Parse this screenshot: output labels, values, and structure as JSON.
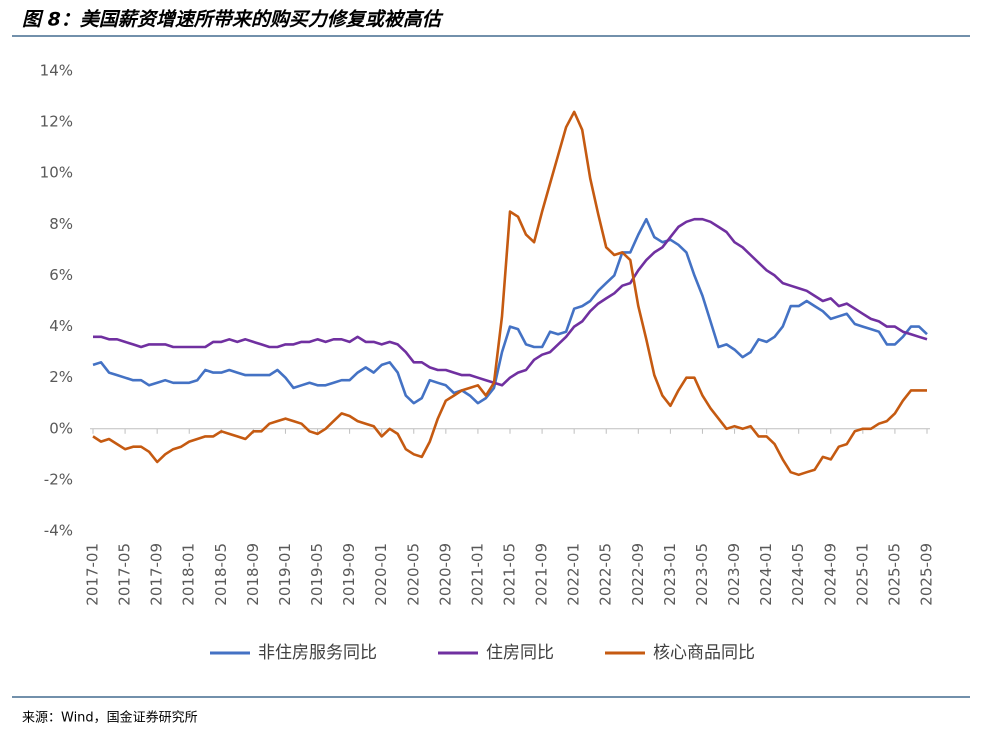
{
  "chart_data": {
    "type": "line",
    "title": "图 8：美国薪资增速所带来的购买力修复或被高估",
    "source": "来源：Wind，国金证券研究所",
    "categories": [
      "2017-01",
      null,
      null,
      null,
      "2017-05",
      null,
      null,
      null,
      "2017-09",
      null,
      null,
      null,
      "2018-01",
      null,
      null,
      null,
      "2018-05",
      null,
      null,
      null,
      "2018-09",
      null,
      null,
      null,
      "2019-01",
      null,
      null,
      null,
      "2019-05",
      null,
      null,
      null,
      "2019-09",
      null,
      null,
      null,
      "2020-01",
      null,
      null,
      null,
      "2020-05",
      null,
      null,
      null,
      "2020-09",
      null,
      null,
      null,
      "2021-01",
      null,
      null,
      null,
      "2021-05",
      null,
      null,
      null,
      "2021-09",
      null,
      null,
      null,
      "2022-01",
      null,
      null,
      null,
      "2022-05",
      null,
      null,
      null,
      "2022-09",
      null,
      null,
      null,
      "2023-01",
      null,
      null,
      null,
      "2023-05",
      null,
      null,
      null,
      "2023-09",
      null,
      null,
      null,
      "2024-01",
      null,
      null,
      null,
      "2024-05",
      null,
      null,
      null,
      "2024-09",
      null,
      null,
      null,
      "2025-01",
      null,
      null,
      null,
      "2025-05",
      null,
      null,
      null,
      "2025-09"
    ],
    "series": [
      {
        "name": "非住房服务同比",
        "color": "#4472c4",
        "values": [
          2.5,
          2.6,
          2.2,
          2.1,
          2.0,
          1.9,
          1.9,
          1.7,
          1.8,
          1.9,
          1.8,
          1.8,
          1.8,
          1.9,
          2.3,
          2.2,
          2.2,
          2.3,
          2.2,
          2.1,
          2.1,
          2.1,
          2.1,
          2.3,
          2.0,
          1.6,
          1.7,
          1.8,
          1.7,
          1.7,
          1.8,
          1.9,
          1.9,
          2.2,
          2.4,
          2.2,
          2.5,
          2.6,
          2.2,
          1.3,
          1.0,
          1.2,
          1.9,
          1.8,
          1.7,
          1.4,
          1.5,
          1.3,
          1.0,
          1.2,
          1.6,
          3.0,
          4.0,
          3.9,
          3.3,
          3.2,
          3.2,
          3.8,
          3.7,
          3.8,
          4.7,
          4.8,
          5.0,
          5.4,
          5.7,
          6.0,
          6.9,
          6.9,
          7.6,
          8.2,
          7.5,
          7.3,
          7.4,
          7.2,
          6.9,
          6.0,
          5.2,
          4.2,
          3.2,
          3.3,
          3.1,
          2.8,
          3.0,
          3.5,
          3.4,
          3.6,
          4.0,
          4.8,
          4.8,
          5.0,
          4.8,
          4.6,
          4.3,
          4.4,
          4.5,
          4.1,
          4.0,
          3.9,
          3.8,
          3.3,
          3.3,
          3.6,
          4.0,
          4.0,
          3.7
        ]
      },
      {
        "name": "住房同比",
        "color": "#7030a0",
        "values": [
          3.6,
          3.6,
          3.5,
          3.5,
          3.4,
          3.3,
          3.2,
          3.3,
          3.3,
          3.3,
          3.2,
          3.2,
          3.2,
          3.2,
          3.2,
          3.4,
          3.4,
          3.5,
          3.4,
          3.5,
          3.4,
          3.3,
          3.2,
          3.2,
          3.3,
          3.3,
          3.4,
          3.4,
          3.5,
          3.4,
          3.5,
          3.5,
          3.4,
          3.6,
          3.4,
          3.4,
          3.3,
          3.4,
          3.3,
          3.0,
          2.6,
          2.6,
          2.4,
          2.3,
          2.3,
          2.2,
          2.1,
          2.1,
          2.0,
          1.9,
          1.8,
          1.7,
          2.0,
          2.2,
          2.3,
          2.7,
          2.9,
          3.0,
          3.3,
          3.6,
          4.0,
          4.2,
          4.6,
          4.9,
          5.1,
          5.3,
          5.6,
          5.7,
          6.2,
          6.6,
          6.9,
          7.1,
          7.5,
          7.9,
          8.1,
          8.2,
          8.2,
          8.1,
          7.9,
          7.7,
          7.3,
          7.1,
          6.8,
          6.5,
          6.2,
          6.0,
          5.7,
          5.6,
          5.5,
          5.4,
          5.2,
          5.0,
          5.1,
          4.8,
          4.9,
          4.7,
          4.5,
          4.3,
          4.2,
          4.0,
          4.0,
          3.8,
          3.7,
          3.6,
          3.5
        ]
      },
      {
        "name": "核心商品同比",
        "color": "#c55a11",
        "values": [
          -0.3,
          -0.5,
          -0.4,
          -0.6,
          -0.8,
          -0.7,
          -0.7,
          -0.9,
          -1.3,
          -1.0,
          -0.8,
          -0.7,
          -0.5,
          -0.4,
          -0.3,
          -0.3,
          -0.1,
          -0.2,
          -0.3,
          -0.4,
          -0.1,
          -0.1,
          0.2,
          0.3,
          0.4,
          0.3,
          0.2,
          -0.1,
          -0.2,
          0.0,
          0.3,
          0.6,
          0.5,
          0.3,
          0.2,
          0.1,
          -0.3,
          0.0,
          -0.2,
          -0.8,
          -1.0,
          -1.1,
          -0.5,
          0.4,
          1.1,
          1.3,
          1.5,
          1.6,
          1.7,
          1.3,
          1.8,
          4.4,
          8.5,
          8.3,
          7.6,
          7.3,
          8.5,
          9.6,
          10.7,
          11.8,
          12.4,
          11.7,
          9.8,
          8.4,
          7.1,
          6.8,
          6.9,
          6.6,
          4.8,
          3.5,
          2.1,
          1.3,
          0.9,
          1.5,
          2.0,
          2.0,
          1.3,
          0.8,
          0.4,
          0.0,
          0.1,
          0.0,
          0.1,
          -0.3,
          -0.3,
          -0.6,
          -1.2,
          -1.7,
          -1.8,
          -1.7,
          -1.6,
          -1.1,
          -1.2,
          -0.7,
          -0.6,
          -0.1,
          0.0,
          0.0,
          0.2,
          0.3,
          0.6,
          1.1,
          1.5,
          1.5,
          1.5
        ]
      }
    ],
    "ylim": [
      -4,
      14
    ],
    "yticks": [
      {
        "value": -4,
        "label": "-4%"
      },
      {
        "value": -2,
        "label": "-2%"
      },
      {
        "value": 0,
        "label": "0%"
      },
      {
        "value": 2,
        "label": "2%"
      },
      {
        "value": 4,
        "label": "4%"
      },
      {
        "value": 6,
        "label": "6%"
      },
      {
        "value": 8,
        "label": "8%"
      },
      {
        "value": 10,
        "label": "10%"
      },
      {
        "value": 12,
        "label": "12%"
      },
      {
        "value": 14,
        "label": "14%"
      }
    ],
    "legend": "bottom"
  }
}
